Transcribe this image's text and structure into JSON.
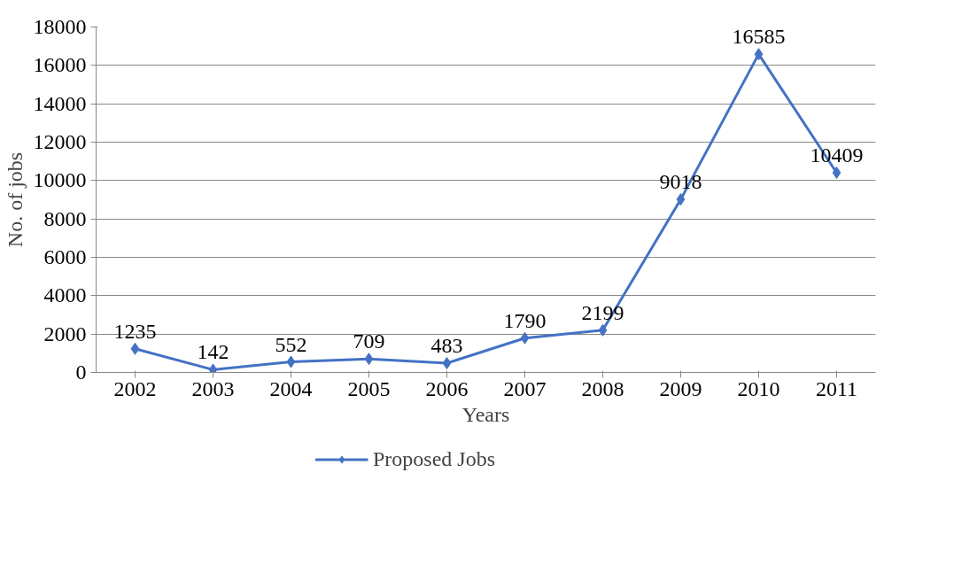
{
  "chart_data": {
    "type": "line",
    "xlabel": "Years",
    "ylabel": "No. of jobs",
    "categories": [
      "2002",
      "2003",
      "2004",
      "2005",
      "2006",
      "2007",
      "2008",
      "2009",
      "2010",
      "2011"
    ],
    "series": [
      {
        "name": "Proposed Jobs",
        "color": "#4472c4",
        "values": [
          1235,
          142,
          552,
          709,
          483,
          1790,
          2199,
          9018,
          16585,
          10409
        ]
      }
    ],
    "ylim": [
      0,
      18000
    ],
    "yticks": [
      0,
      2000,
      4000,
      6000,
      8000,
      10000,
      12000,
      14000,
      16000,
      18000
    ],
    "grid": "y",
    "legend": "bottom",
    "marker": "diamond",
    "line_style": "solid",
    "data_labels": true
  }
}
